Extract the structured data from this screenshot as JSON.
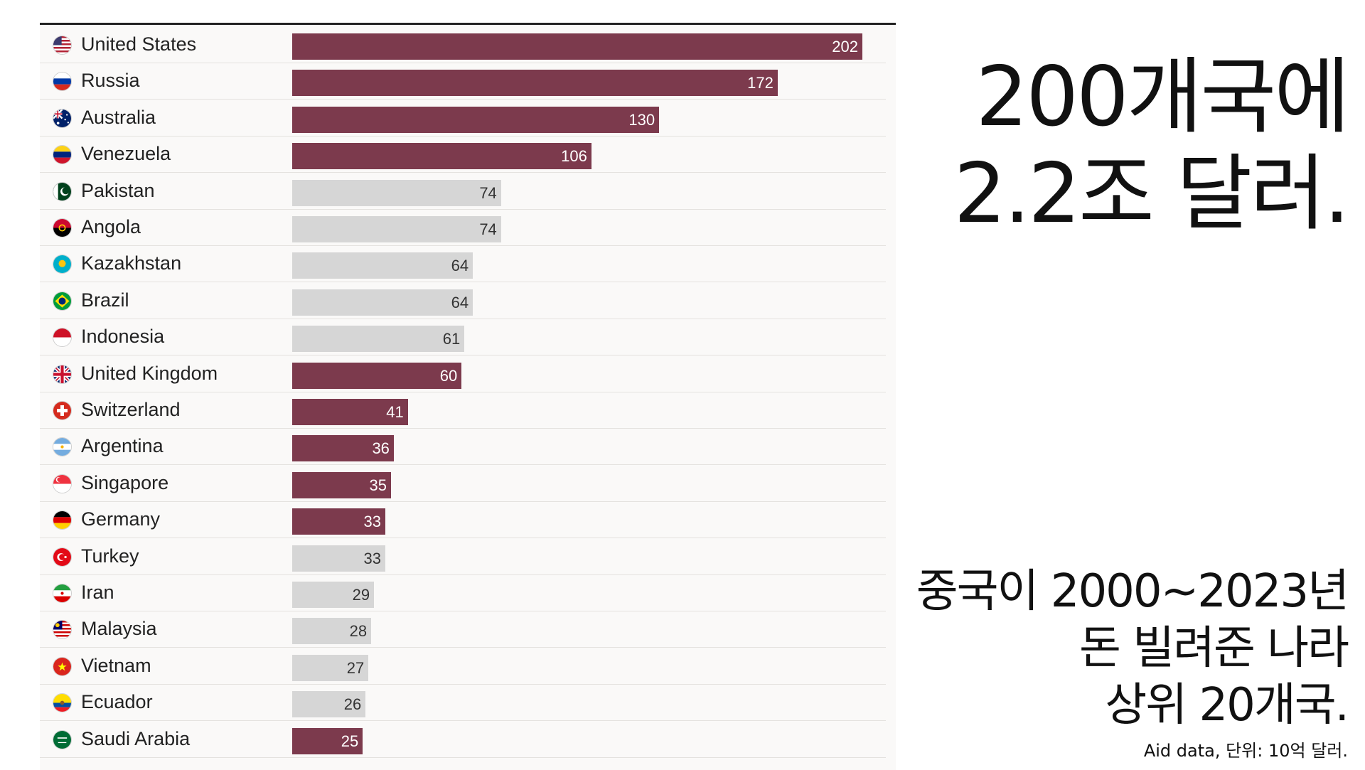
{
  "headline": {
    "line1": "200개국에",
    "line2": "2.2조 달러."
  },
  "subhead": {
    "line1": "중국이 2000~2023년",
    "line2": "돈 빌려준 나라",
    "line3": "상위 20개국."
  },
  "source_note": "Aid data, 단위: 10억 달러.",
  "colors": {
    "highlight_bar": "#7c3a4d",
    "neutral_bar": "#d6d6d6"
  },
  "chart_data": {
    "type": "bar",
    "orientation": "horizontal",
    "title": "",
    "xlabel": "",
    "ylabel": "",
    "xlim": [
      0,
      202
    ],
    "grid": false,
    "categories": [
      "United States",
      "Russia",
      "Australia",
      "Venezuela",
      "Pakistan",
      "Angola",
      "Kazakhstan",
      "Brazil",
      "Indonesia",
      "United Kingdom",
      "Switzerland",
      "Argentina",
      "Singapore",
      "Germany",
      "Turkey",
      "Iran",
      "Malaysia",
      "Vietnam",
      "Ecuador",
      "Saudi Arabia"
    ],
    "values": [
      202,
      172,
      130,
      106,
      74,
      74,
      64,
      64,
      61,
      60,
      41,
      36,
      35,
      33,
      33,
      29,
      28,
      27,
      26,
      25
    ],
    "highlighted": [
      true,
      true,
      true,
      true,
      false,
      false,
      false,
      false,
      false,
      true,
      true,
      true,
      true,
      true,
      false,
      false,
      false,
      false,
      false,
      true
    ],
    "flag_icons": [
      "us-flag-icon",
      "russia-flag-icon",
      "australia-flag-icon",
      "venezuela-flag-icon",
      "pakistan-flag-icon",
      "angola-flag-icon",
      "kazakhstan-flag-icon",
      "brazil-flag-icon",
      "indonesia-flag-icon",
      "uk-flag-icon",
      "switzerland-flag-icon",
      "argentina-flag-icon",
      "singapore-flag-icon",
      "germany-flag-icon",
      "turkey-flag-icon",
      "iran-flag-icon",
      "malaysia-flag-icon",
      "vietnam-flag-icon",
      "ecuador-flag-icon",
      "saudi-arabia-flag-icon"
    ]
  }
}
